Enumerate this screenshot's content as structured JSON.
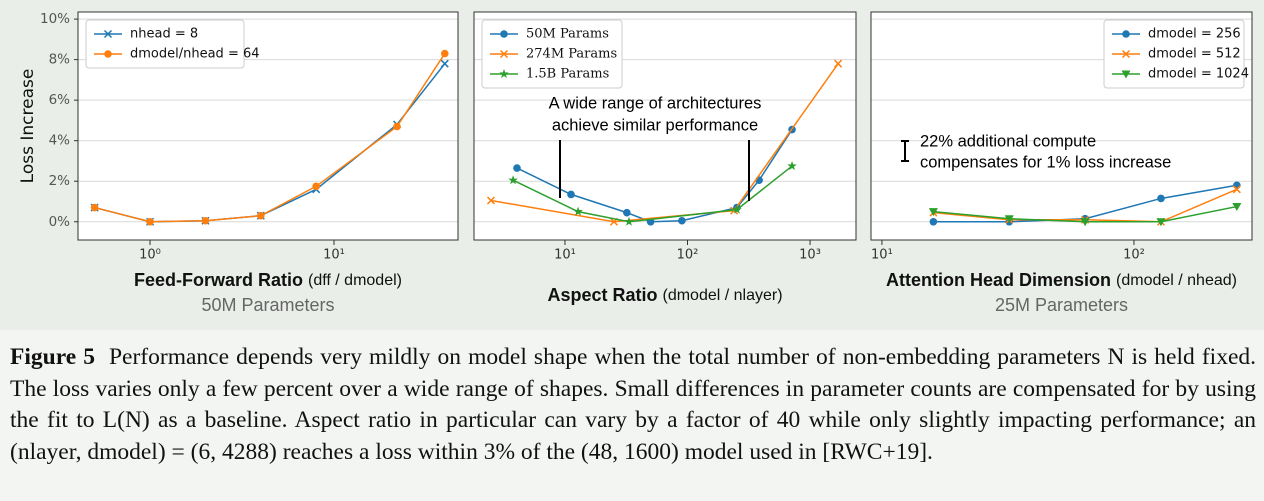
{
  "chart_data": [
    {
      "type": "line",
      "ylabel": "Loss Increase",
      "xlabel": "Feed-Forward Ratio",
      "xlabel_unit": "(dff / dmodel)",
      "subtitle": "50M Parameters",
      "xscale": "log",
      "xlim": [
        0.406,
        47.2
      ],
      "xticks": [
        {
          "value": 1,
          "label": "10⁰"
        },
        {
          "value": 10,
          "label": "10¹"
        }
      ],
      "ylim": [
        -0.9,
        10.35
      ],
      "yticks": [
        {
          "value": 0,
          "label": "0%"
        },
        {
          "value": 2,
          "label": "2%"
        },
        {
          "value": 4,
          "label": "4%"
        },
        {
          "value": 6,
          "label": "6%"
        },
        {
          "value": 8,
          "label": "8%"
        },
        {
          "value": 10,
          "label": "10%"
        }
      ],
      "grid": true,
      "legend": "upper left",
      "x": [
        0.5,
        1,
        2,
        4,
        8,
        22,
        40
      ],
      "series": [
        {
          "name": "nhead = 8",
          "color": "#1f77b4",
          "marker": "x",
          "values": [
            0.7,
            0,
            0.05,
            0.3,
            1.6,
            4.8,
            7.8
          ]
        },
        {
          "name": "dmodel/nhead = 64",
          "color": "#ff7f0e",
          "marker": "o",
          "values": [
            0.7,
            0,
            0.05,
            0.3,
            1.75,
            4.7,
            8.3
          ]
        }
      ]
    },
    {
      "type": "line",
      "xlabel": "Aspect Ratio",
      "xlabel_unit": "(dmodel / nlayer)",
      "xscale": "log",
      "xlim": [
        1.81,
        2371
      ],
      "xticks": [
        {
          "value": 10,
          "label": "10¹"
        },
        {
          "value": 100,
          "label": "10²"
        },
        {
          "value": 1000,
          "label": "10³"
        }
      ],
      "ylim": [
        -0.9,
        10.35
      ],
      "yticks": [
        0,
        2,
        4,
        6,
        8,
        10
      ],
      "grid": true,
      "legend": "upper left",
      "annotation": [
        "A wide range of architectures",
        "achieve similar performance"
      ],
      "series": [
        {
          "name": "50M Params",
          "color": "#1f77b4",
          "marker": "o",
          "x": [
            4.06,
            11.2,
            32,
            50,
            90,
            253,
            384,
            713
          ],
          "values": [
            2.65,
            1.35,
            0.45,
            0,
            0.05,
            0.7,
            2.05,
            4.55
          ]
        },
        {
          "name": "274M Params",
          "color": "#ff7f0e",
          "marker": "x",
          "x": [
            2.49,
            25.1,
            240,
            1694
          ],
          "values": [
            1.05,
            0,
            0.55,
            7.8
          ]
        },
        {
          "name": "1.5B Params",
          "color": "#2ca02c",
          "marker": "*",
          "x": [
            3.77,
            12.8,
            33.3,
            253,
            713
          ],
          "values": [
            2.05,
            0.5,
            0,
            0.6,
            2.75
          ]
        }
      ]
    },
    {
      "type": "line",
      "xlabel": "Attention Head Dimension",
      "xlabel_unit": "(dmodel / nhead)",
      "subtitle": "25M Parameters",
      "xscale": "log",
      "xlim": [
        9.05,
        294
      ],
      "xticks": [
        {
          "value": 10,
          "label": "10¹"
        },
        {
          "value": 100,
          "label": "10²"
        }
      ],
      "ylim": [
        -0.9,
        10.35
      ],
      "yticks": [
        0,
        2,
        4,
        6,
        8,
        10
      ],
      "grid": true,
      "legend": "upper right",
      "annotation": [
        "22% additional compute",
        "compensates for 1% loss increase"
      ],
      "x": [
        16,
        32,
        64,
        128,
        256
      ],
      "series": [
        {
          "name": "dmodel = 256",
          "color": "#1f77b4",
          "marker": "o",
          "values": [
            0,
            0,
            0.15,
            1.15,
            1.8
          ]
        },
        {
          "name": "dmodel = 512",
          "color": "#ff7f0e",
          "marker": "x",
          "values": [
            0.45,
            0.1,
            0.1,
            0,
            1.6
          ]
        },
        {
          "name": "dmodel = 1024",
          "color": "#2ca02c",
          "marker": "v",
          "values": [
            0.5,
            0.15,
            0,
            0,
            0.75
          ]
        }
      ]
    }
  ],
  "caption": {
    "label": "Figure 5",
    "text": "Performance depends very mildly on model shape when the total number of non-embedding parameters N is held fixed. The loss varies only a few percent over a wide range of shapes. Small differences in parameter counts are compensated for by using the fit to L(N) as a baseline. Aspect ratio in particular can vary by a factor of 40 while only slightly impacting performance; an (nlayer, dmodel) = (6, 4288) reaches a loss within 3% of the (48, 1600) model used in [RWC+19]."
  }
}
